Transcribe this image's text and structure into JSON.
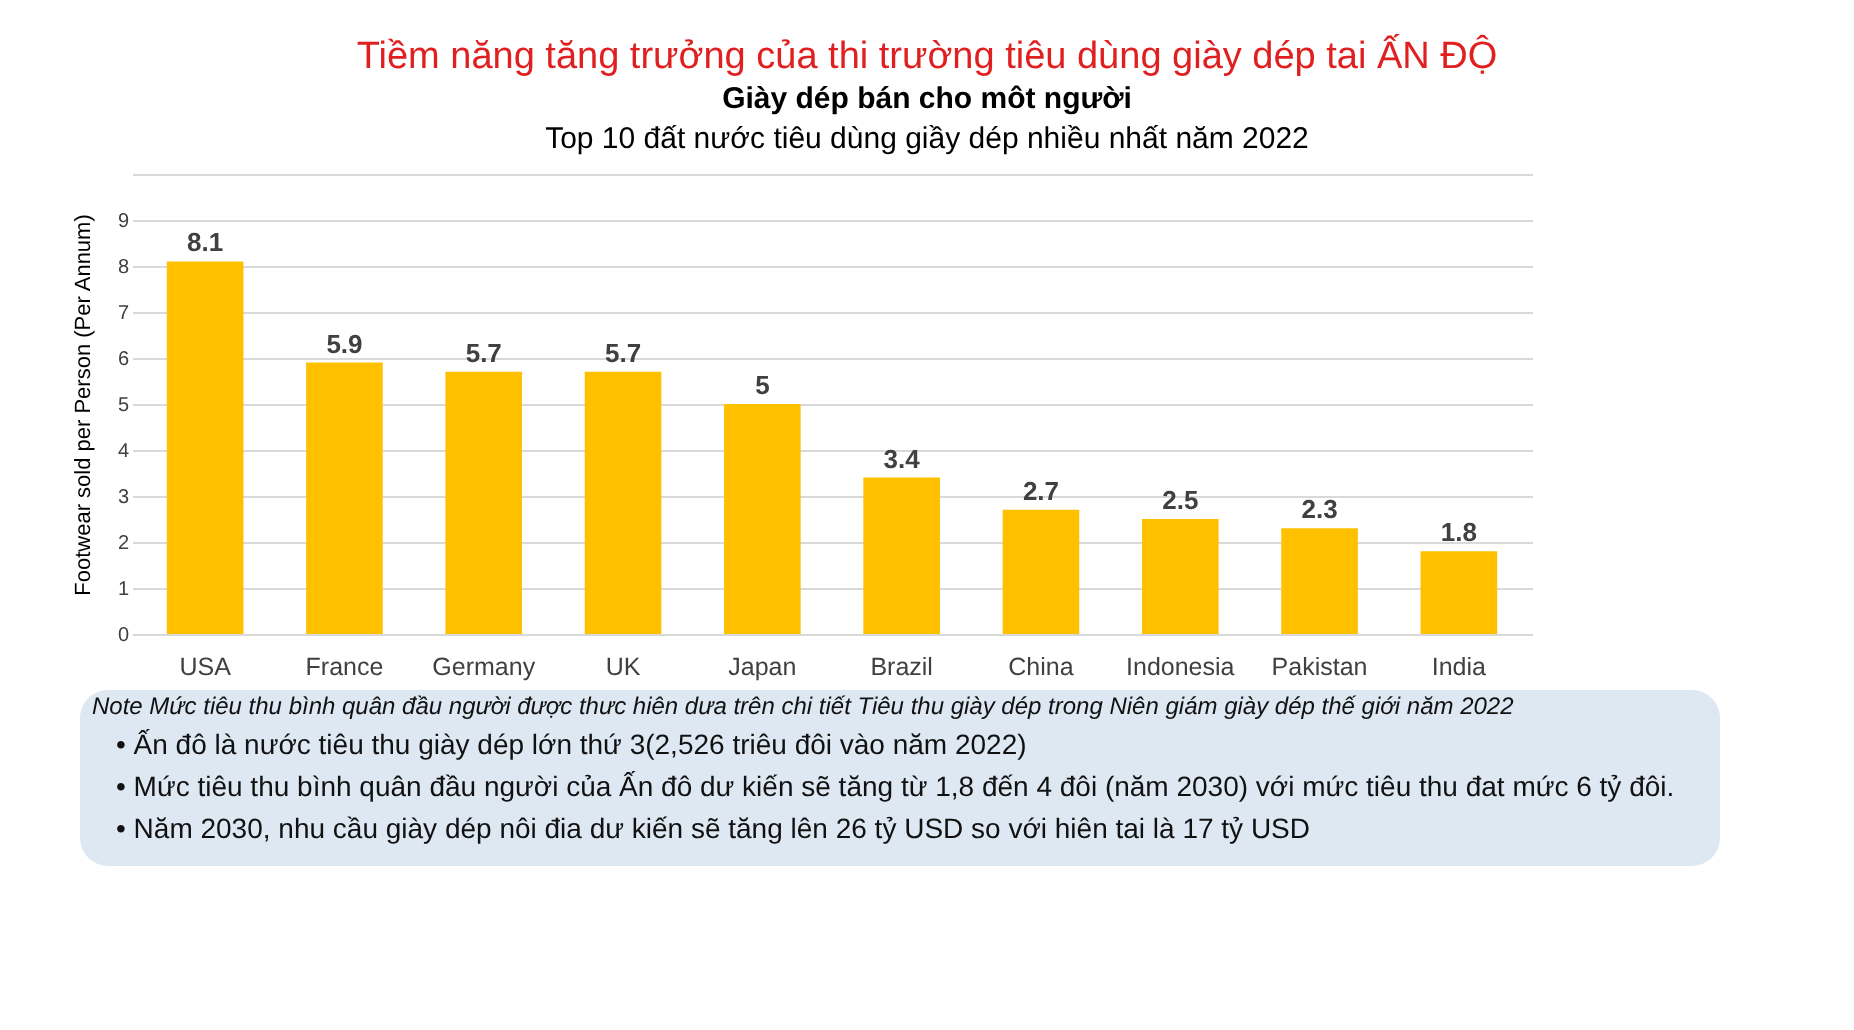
{
  "chart_data": {
    "type": "bar",
    "title": "Tiềm năng tăng trưởng của thi trường tiêu dùng giày dép tai  ẤN ĐỘ",
    "subtitle": "Giày dép bán cho môt người\nTop 10 đất nước tiêu dùng giầy dép nhiều nhất năm 2022",
    "ylabel": "Footwear sold per Person (Per Annum)",
    "categories": [
      "USA",
      "France",
      "Germany",
      "UK",
      "Japan",
      "Brazil",
      "China",
      "Indonesia",
      "Pakistan",
      "India"
    ],
    "values": [
      8.1,
      5.9,
      5.7,
      5.7,
      5,
      3.4,
      2.7,
      2.5,
      2.3,
      1.8
    ],
    "color": "#ffc000",
    "data_labels": true,
    "grid": "y",
    "ylim": [
      0,
      10
    ],
    "yticks": [
      0,
      1,
      2,
      3,
      4,
      5,
      6,
      7,
      8,
      9,
      {
        "value": 10,
        "label": null
      }
    ],
    "annotations": [
      "Note Mức tiêu thu bình quân đầu người được thưc hiên dưa trên chi tiết Tiêu thu giày dép trong Niên giám giày dép thế giới năm 2022",
      "• Ấn đô là nước tiêu thu giày dép lớn thứ 3(2,526 triêu đôi vào năm 2022)",
      "• Mức tiêu thu bình quân đầu người của Ấn đô dư kiến sẽ tăng từ 1,8 đến 4 đôi (năm 2030) với mức tiêu thu đat mức 6 tỷ đôi.",
      "• Năm 2030, nhu cầu giày dép nôi đia dư kiến sẽ tăng lên 26 tỷ USD so với hiên tai là 17 tỷ USD"
    ]
  }
}
